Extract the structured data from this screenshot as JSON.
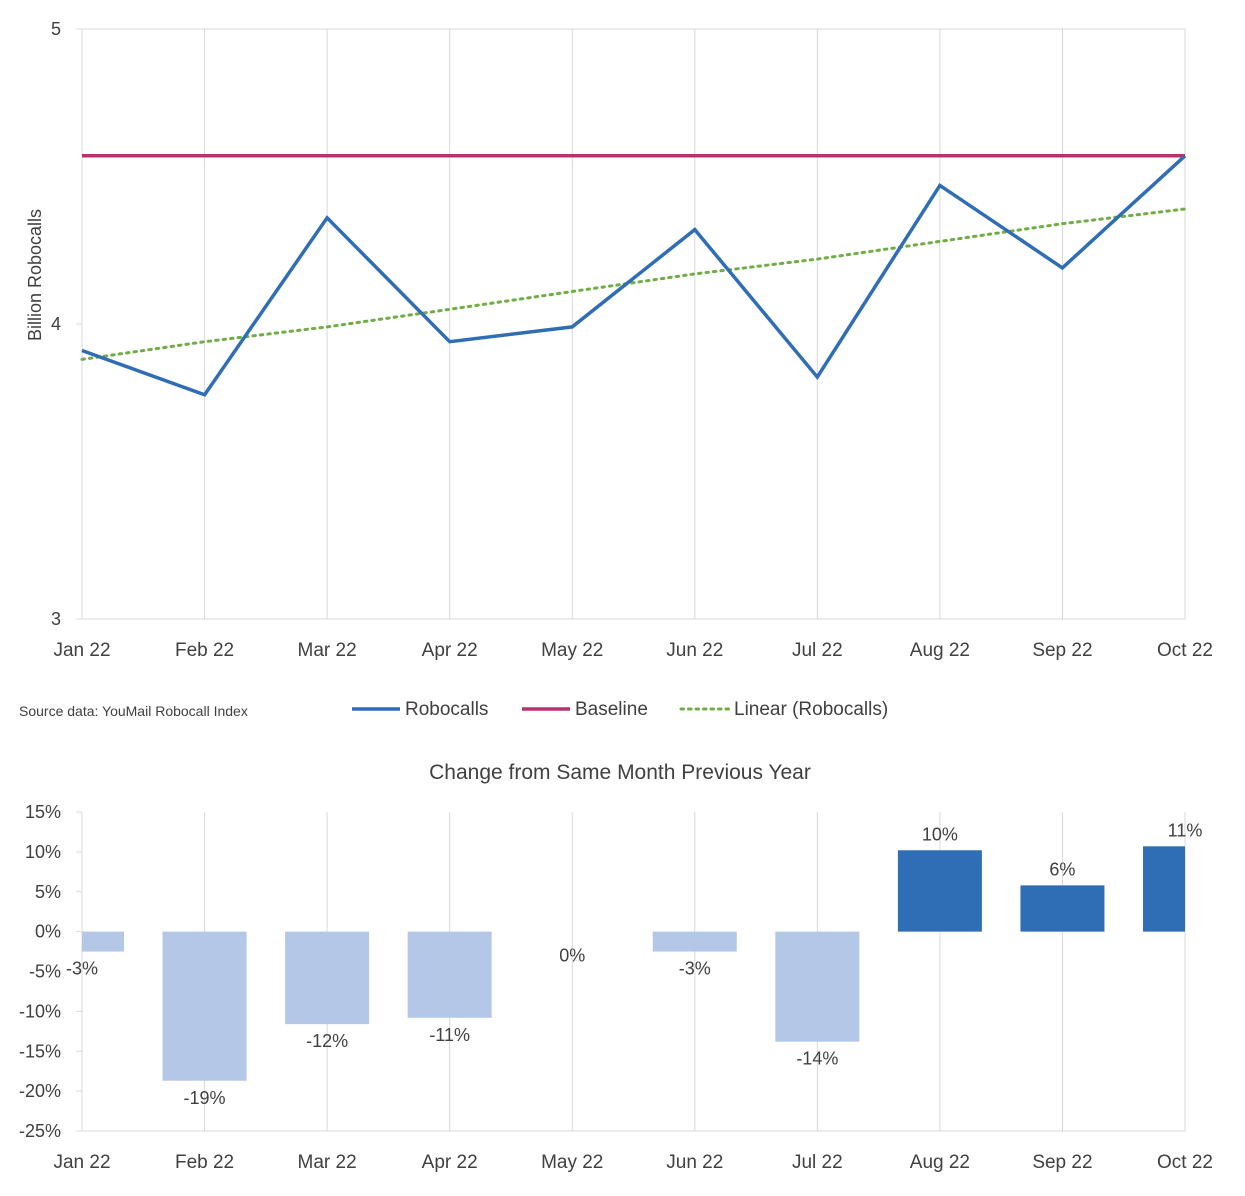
{
  "source_note": "Source data: YouMail Robocall Index",
  "chart_data": [
    {
      "type": "line",
      "title": "",
      "xlabel": "",
      "ylabel": "Billion Robocalls",
      "categories": [
        "Jan 22",
        "Feb 22",
        "Mar 22",
        "Apr 22",
        "May 22",
        "Jun 22",
        "Jul 22",
        "Aug 22",
        "Sep 22",
        "Oct 22"
      ],
      "ylim": [
        3,
        5
      ],
      "yticks": [
        "3",
        "4",
        "5"
      ],
      "grid": "vertical",
      "legend_position": "bottom",
      "series": [
        {
          "name": "Robocalls",
          "style": "solid",
          "color": "#2f6db5",
          "values": [
            3.91,
            3.76,
            4.36,
            3.94,
            3.99,
            4.32,
            3.82,
            4.47,
            4.19,
            4.57
          ]
        },
        {
          "name": "Baseline",
          "style": "solid",
          "color": "#b5336f",
          "values": [
            4.57,
            4.57,
            4.57,
            4.57,
            4.57,
            4.57,
            4.57,
            4.57,
            4.57,
            4.57
          ]
        },
        {
          "name": "Linear (Robocalls)",
          "style": "dotted",
          "color": "#70ad47",
          "values": [
            3.88,
            3.94,
            3.99,
            4.05,
            4.11,
            4.17,
            4.22,
            4.28,
            4.34,
            4.39
          ]
        }
      ]
    },
    {
      "type": "bar",
      "title": "Change from Same Month Previous Year",
      "xlabel": "",
      "ylabel": "",
      "categories": [
        "Jan 22",
        "Feb 22",
        "Mar 22",
        "Apr 22",
        "May 22",
        "Jun 22",
        "Jul 22",
        "Aug 22",
        "Sep 22",
        "Oct 22"
      ],
      "ylim": [
        -25,
        15
      ],
      "yticks": [
        "-25%",
        "-20%",
        "-15%",
        "-10%",
        "-5%",
        "0%",
        "5%",
        "10%",
        "15%"
      ],
      "grid": "vertical",
      "values": [
        -2.5,
        -18.7,
        -11.6,
        -10.8,
        0,
        -2.5,
        -13.8,
        10.2,
        5.8,
        10.7
      ],
      "data_labels": [
        "-3%",
        "-19%",
        "-12%",
        "-11%",
        "0%",
        "-3%",
        "-14%",
        "10%",
        "6%",
        "11%"
      ],
      "colors": {
        "positive": "#2f6db5",
        "negative": "#b4c7e7"
      }
    }
  ]
}
